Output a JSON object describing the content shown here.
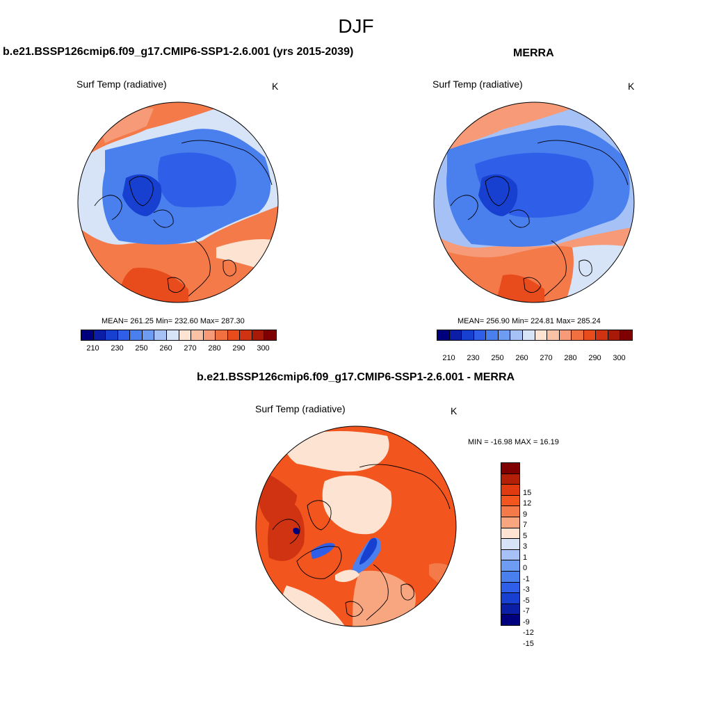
{
  "main_title": "DJF",
  "panels": {
    "model": {
      "title": "b.e21.BSSP126cmip6.f09_g17.CMIP6-SSP1-2.6.001 (yrs 2015-2039)",
      "var_label": "Surf Temp (radiative)",
      "unit": "K",
      "stats": "MEAN= 261.25  Min= 232.60  Max= 287.30"
    },
    "obs": {
      "title": "MERRA",
      "var_label": "Surf Temp (radiative)",
      "unit": "K",
      "stats": "MEAN= 256.90  Min= 224.81  Max= 285.24"
    },
    "diff": {
      "title": "b.e21.BSSP126cmip6.f09_g17.CMIP6-SSP1-2.6.001 - MERRA",
      "var_label": "Surf Temp (radiative)",
      "unit": "K",
      "stats": "MIN = -16.98 MAX =  16.19"
    }
  },
  "abs_colorbar": {
    "colors": [
      "#00007f",
      "#0a1fa6",
      "#1740d0",
      "#2f5ee8",
      "#4a7fee",
      "#6f9cf3",
      "#a6c1f6",
      "#d7e4f8",
      "#fde3d2",
      "#f9c2a5",
      "#f69a78",
      "#f1703f",
      "#e84c1d",
      "#cf3311",
      "#a81a08",
      "#7f0000"
    ],
    "ticks": [
      "210",
      "230",
      "250",
      "260",
      "270",
      "280",
      "290",
      "300"
    ]
  },
  "diff_colorbar": {
    "colors": [
      "#7f0000",
      "#b32007",
      "#e03a10",
      "#f2551e",
      "#f47a4a",
      "#f8a680",
      "#fde3d2",
      "#d7e4f8",
      "#a6c1f6",
      "#6f9cf3",
      "#4a7fee",
      "#2f5ee8",
      "#1740d0",
      "#0a1fa6",
      "#00007f"
    ],
    "ticks": [
      "15",
      "12",
      "9",
      "7",
      "5",
      "3",
      "1",
      "0",
      "-1",
      "-3",
      "-5",
      "-7",
      "-9",
      "-12",
      "-15"
    ]
  }
}
